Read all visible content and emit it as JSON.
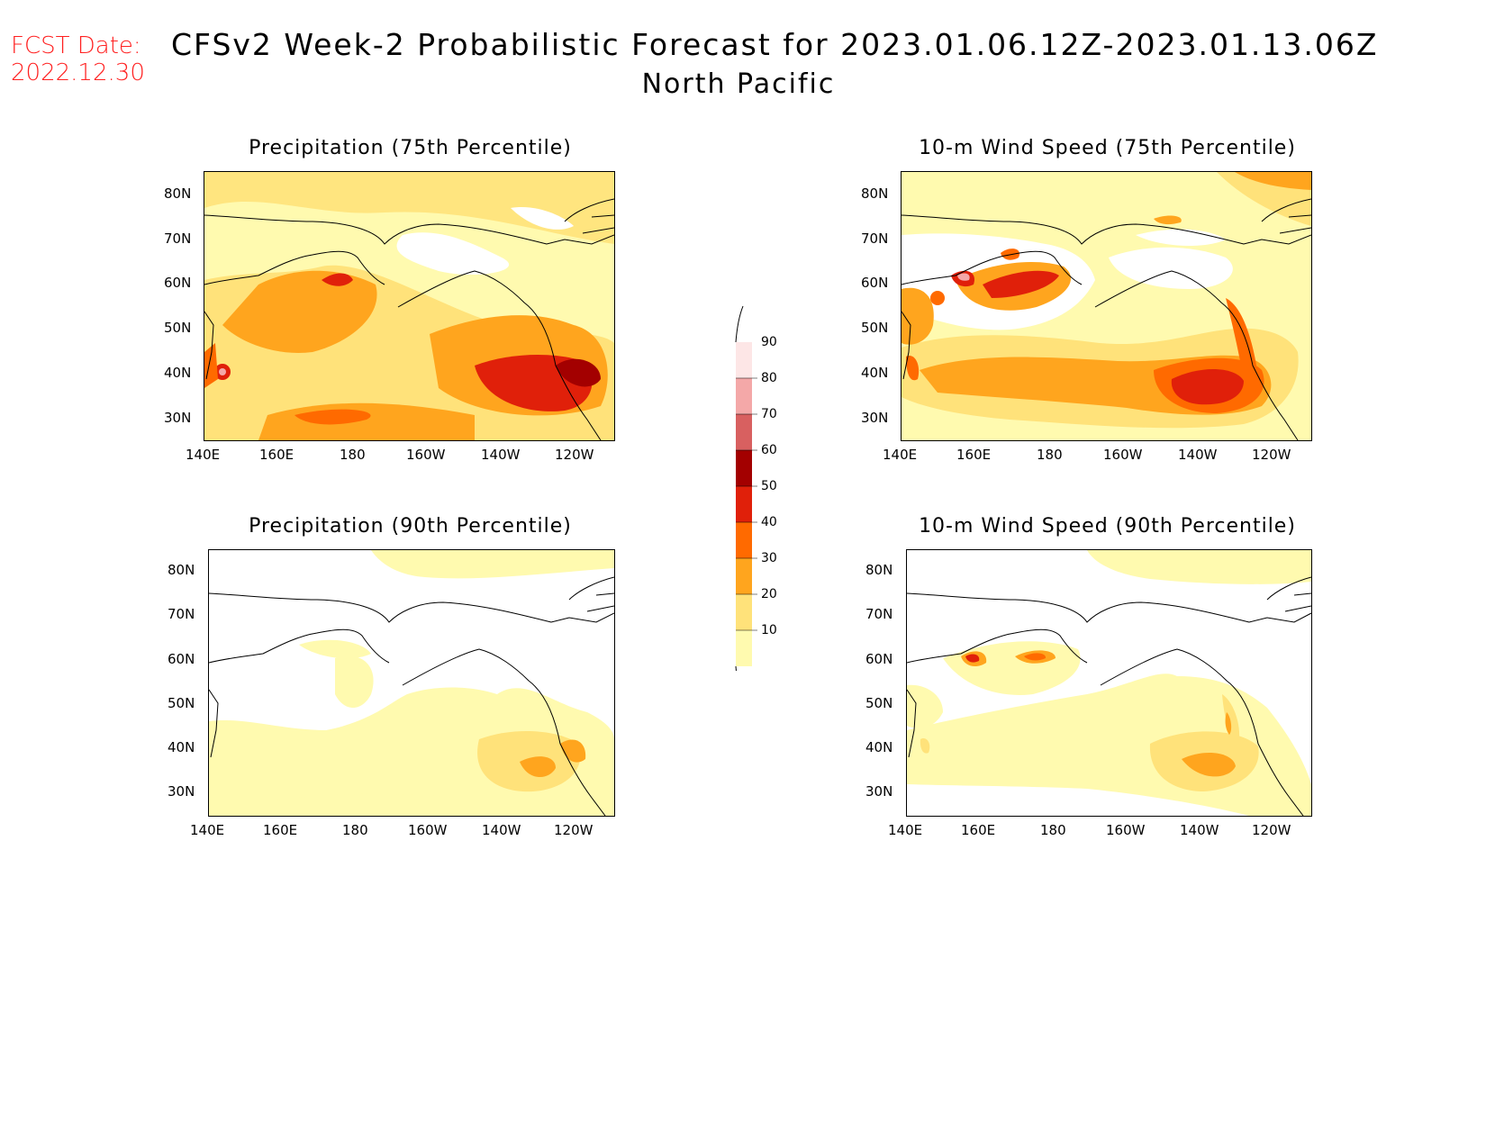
{
  "header": {
    "fcst_date_label": "FCST Date:",
    "fcst_date_value": "2022.12.30",
    "title": "CFSv2 Week-2 Probabilistic Forecast for 2023.01.06.12Z-2023.01.13.06Z",
    "subtitle": "North Pacific"
  },
  "axes": {
    "lat_labels": [
      "80N",
      "70N",
      "60N",
      "50N",
      "40N",
      "30N"
    ],
    "lon_labels": [
      "140E",
      "160E",
      "180",
      "160W",
      "140W",
      "120W"
    ]
  },
  "panels": [
    {
      "id": "precip75",
      "title": "Precipitation (75th Percentile)"
    },
    {
      "id": "wind75",
      "title": "10-m Wind Speed (75th Percentile)"
    },
    {
      "id": "precip90",
      "title": "Precipitation (90th Percentile)"
    },
    {
      "id": "wind90",
      "title": "10-m Wind Speed (90th Percentile)"
    }
  ],
  "colorbar": {
    "levels": [
      "10",
      "20",
      "30",
      "40",
      "50",
      "60",
      "70",
      "80",
      "90"
    ],
    "colors": [
      "#fffaaf",
      "#ffe27a",
      "#ffa51e",
      "#ff6a00",
      "#e0200a",
      "#a30000",
      "#d86060",
      "#f4a8a8",
      "#fde6e6"
    ]
  }
}
